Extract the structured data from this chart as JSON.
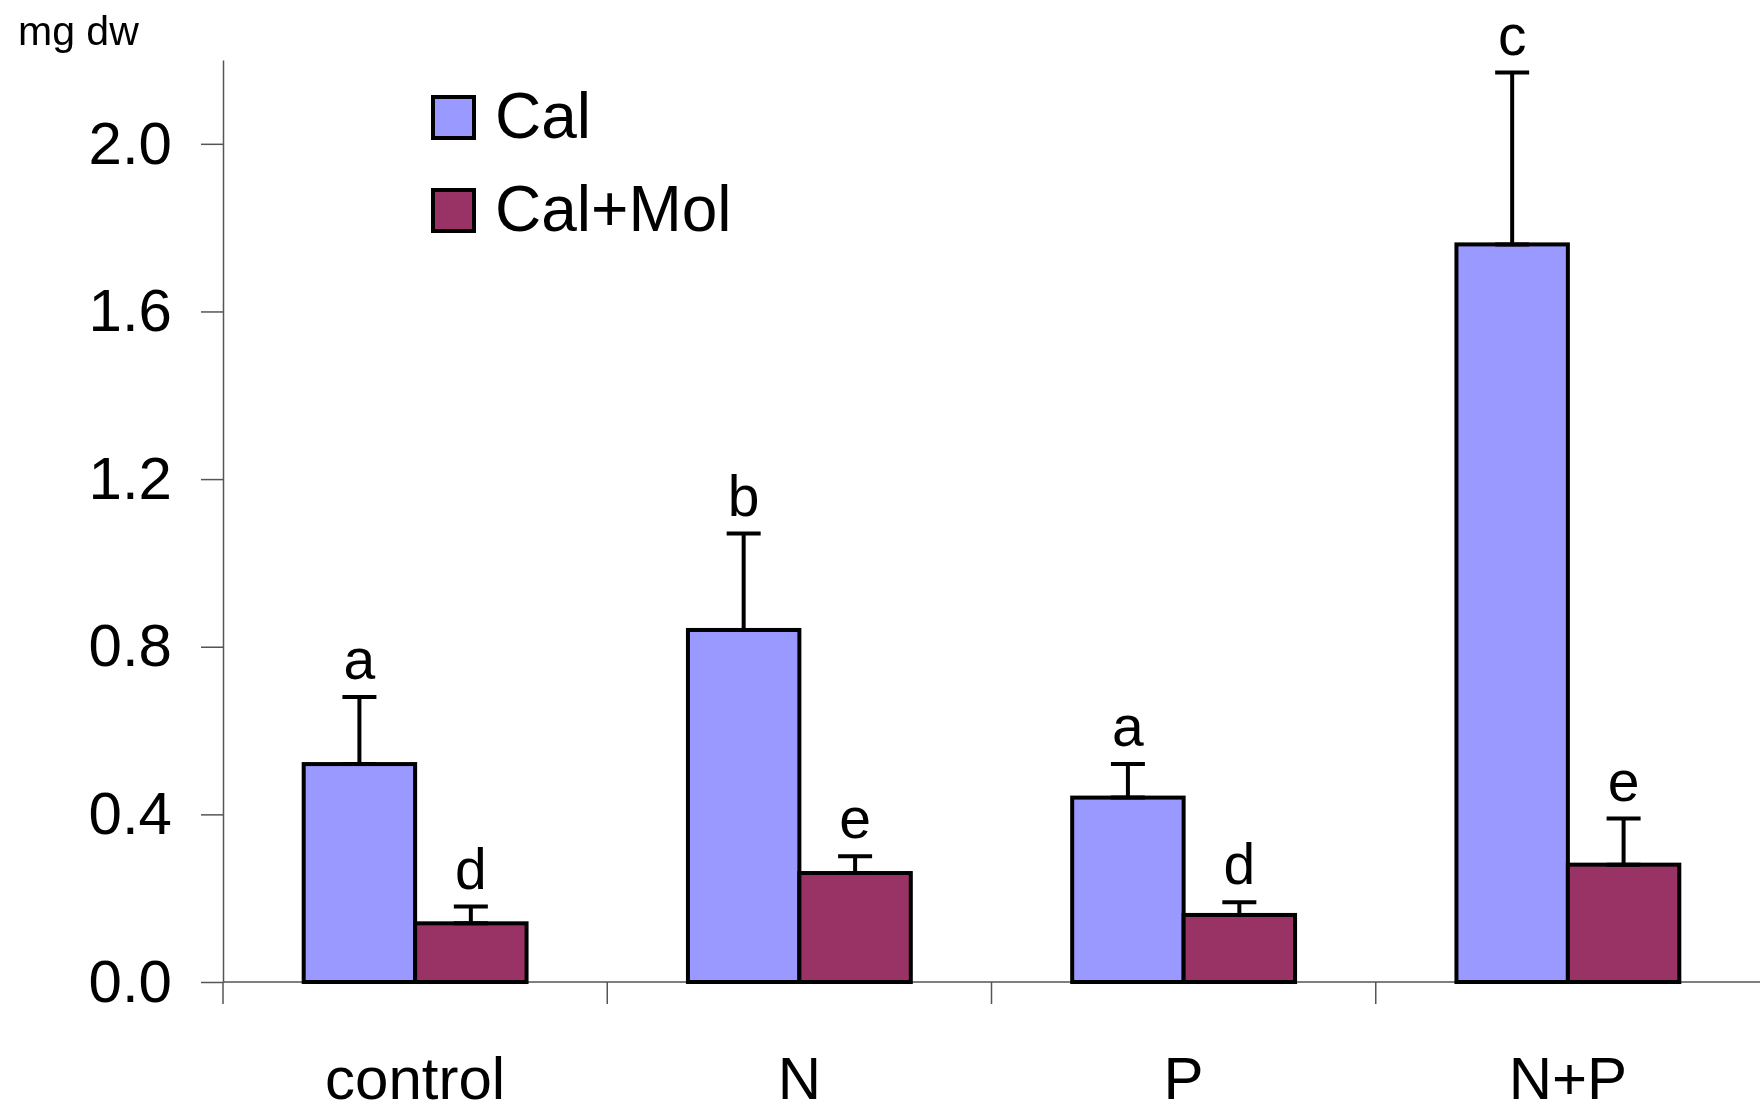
{
  "chart_data": {
    "type": "bar",
    "ylabel": "mg dw",
    "categories": [
      "control",
      "N",
      "P",
      "N+P"
    ],
    "series": [
      {
        "name": "Cal",
        "color": "#9999ff",
        "values": [
          0.52,
          0.84,
          0.44,
          1.76
        ],
        "errors": [
          [
            0.52,
            0.68
          ],
          [
            0.84,
            1.07
          ],
          [
            0.44,
            0.52
          ],
          [
            1.76,
            2.17
          ]
        ]
      },
      {
        "name": "Cal+Mol",
        "color": "#993366",
        "values": [
          0.14,
          0.26,
          0.16,
          0.28
        ],
        "errors": [
          [
            0.14,
            0.18
          ],
          [
            0.26,
            0.3
          ],
          [
            0.16,
            0.19
          ],
          [
            0.28,
            0.39
          ]
        ]
      }
    ],
    "ylim": [
      0,
      2.2
    ],
    "yticks": [
      {
        "value": 0,
        "label": "0.0"
      },
      0.4,
      0.8,
      1.2,
      1.6,
      {
        "value": 2,
        "label": "2.0"
      }
    ],
    "grid": false,
    "legend": "top left",
    "annotations": [
      "a",
      "d",
      "b",
      "e",
      "a",
      "d",
      "c",
      "e"
    ]
  }
}
